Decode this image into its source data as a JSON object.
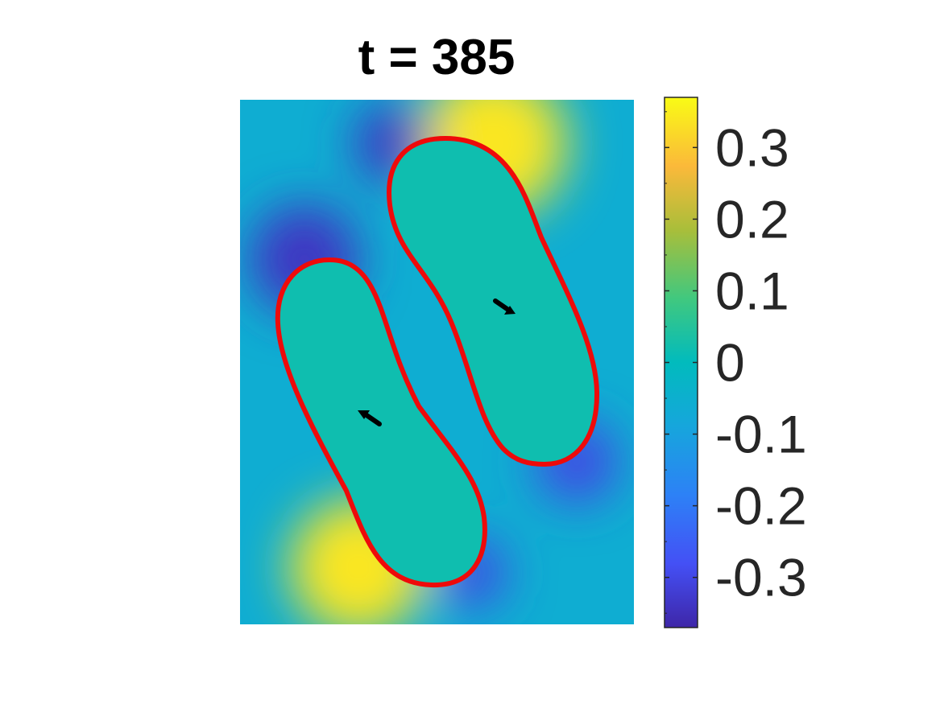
{
  "chart_data": {
    "type": "heatmap",
    "title": "t = 385",
    "xlabel": "",
    "ylabel": "",
    "colormap": "parula",
    "colorbar": {
      "range": [
        -0.37,
        0.37
      ],
      "ticks": [
        -0.3,
        -0.2,
        -0.1,
        0,
        0.1,
        0.2,
        0.3
      ],
      "tick_labels": [
        "-0.3",
        "-0.2",
        "-0.1",
        "0",
        "0.1",
        "0.2",
        "0.3"
      ],
      "minor_tick_step": 0.1
    },
    "background_value": -0.06,
    "interior_value": 0.02,
    "field_sources": [
      {
        "id": "left-cell-top",
        "value": -0.34
      },
      {
        "id": "left-cell-bottom",
        "value": 0.34
      },
      {
        "id": "left-cell-bottom-right",
        "value": -0.3
      },
      {
        "id": "right-cell-top",
        "value": 0.34
      },
      {
        "id": "right-cell-top-left",
        "value": -0.34
      },
      {
        "id": "right-cell-bottom",
        "value": -0.3
      }
    ],
    "cells": [
      {
        "name": "left",
        "outline_color": "#ee0a0a",
        "arrow_direction": "up-left"
      },
      {
        "name": "right",
        "outline_color": "#ee0a0a",
        "arrow_direction": "down-right"
      }
    ],
    "axes_visible": false,
    "grid": false
  }
}
